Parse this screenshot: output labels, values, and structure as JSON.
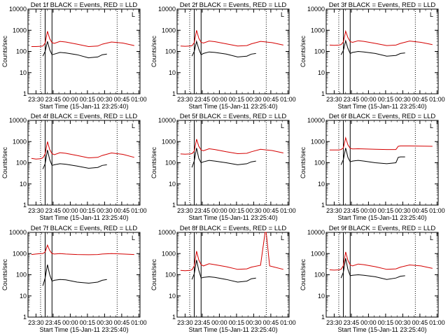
{
  "figure": {
    "title_template": "{det} BLACK = Events, RED = LLD",
    "ylabel": "Counts/sec",
    "xlabel": "Start Time (15-Jan-11 23:25:40)",
    "y_ticks": [
      "1",
      "10",
      "100",
      "1000",
      "10000"
    ],
    "x_ticks": [
      "23:30",
      "23:45",
      "00:00",
      "00:15",
      "00:30",
      "00:45",
      "01:00"
    ],
    "corner_mark": "L"
  },
  "colors": {
    "events": "#000000",
    "lld": "#d40000"
  },
  "chart_data": [
    {
      "type": "line",
      "title": "Det 1f BLACK = Events, RED = LLD",
      "det": "Det 1f",
      "xlabel": "Start Time (15-Jan-11 23:25:40)",
      "ylabel": "Counts/sec",
      "ylim": [
        1,
        10000
      ],
      "yscale": "log",
      "xlim_minutes": [
        -3,
        95
      ],
      "series": [
        {
          "name": "Events",
          "color": "#000000",
          "x": [
            10,
            12,
            14,
            16,
            18,
            20,
            25,
            30,
            40,
            50,
            58,
            62,
            66
          ],
          "y": [
            60,
            100,
            300,
            120,
            70,
            75,
            90,
            85,
            70,
            50,
            55,
            70,
            75
          ]
        },
        {
          "name": "LLD",
          "color": "#d40000",
          "x": [
            0,
            4,
            8,
            10,
            12,
            14,
            16,
            18,
            20,
            25,
            30,
            40,
            50,
            58,
            62,
            70,
            80,
            90
          ],
          "y": [
            170,
            170,
            175,
            180,
            250,
            900,
            400,
            260,
            240,
            300,
            280,
            220,
            170,
            180,
            220,
            280,
            250,
            190
          ]
        }
      ],
      "vlines_solid": [
        12,
        18
      ],
      "vlines_dotted": [
        8,
        75
      ]
    },
    {
      "type": "line",
      "title": "Det 2f BLACK = Events, RED = LLD",
      "det": "Det 2f",
      "xlabel": "Start Time (15-Jan-11 23:25:40)",
      "ylabel": "Counts/sec",
      "ylim": [
        1,
        10000
      ],
      "yscale": "log",
      "xlim_minutes": [
        -3,
        95
      ],
      "series": [
        {
          "name": "Events",
          "color": "#000000",
          "x": [
            10,
            12,
            14,
            16,
            18,
            20,
            25,
            30,
            40,
            50,
            58,
            62,
            66
          ],
          "y": [
            60,
            100,
            300,
            130,
            70,
            80,
            95,
            90,
            75,
            55,
            60,
            75,
            80
          ]
        },
        {
          "name": "LLD",
          "color": "#d40000",
          "x": [
            0,
            4,
            8,
            10,
            12,
            14,
            16,
            18,
            20,
            25,
            30,
            40,
            50,
            58,
            62,
            70,
            80,
            90
          ],
          "y": [
            180,
            175,
            180,
            185,
            260,
            1000,
            420,
            270,
            250,
            310,
            290,
            230,
            180,
            190,
            230,
            300,
            260,
            200
          ]
        }
      ],
      "vlines_solid": [
        12,
        18
      ],
      "vlines_dotted": [
        8,
        75
      ]
    },
    {
      "type": "line",
      "title": "Det 3f BLACK = Events, RED = LLD",
      "det": "Det 3f",
      "xlabel": "Start Time (15-Jan-11 23:25:40)",
      "ylabel": "Counts/sec",
      "ylim": [
        1,
        10000
      ],
      "yscale": "log",
      "xlim_minutes": [
        -3,
        95
      ],
      "series": [
        {
          "name": "Events",
          "color": "#000000",
          "x": [
            10,
            12,
            14,
            16,
            18,
            20,
            25,
            30,
            40,
            50,
            58,
            62,
            66
          ],
          "y": [
            70,
            110,
            320,
            140,
            80,
            90,
            100,
            95,
            80,
            60,
            65,
            80,
            85
          ]
        },
        {
          "name": "LLD",
          "color": "#d40000",
          "x": [
            0,
            4,
            8,
            10,
            12,
            14,
            16,
            18,
            20,
            25,
            30,
            40,
            50,
            58,
            62,
            70,
            80,
            90
          ],
          "y": [
            200,
            195,
            200,
            210,
            280,
            900,
            450,
            290,
            270,
            320,
            300,
            240,
            190,
            200,
            240,
            310,
            270,
            210
          ]
        }
      ],
      "vlines_solid": [
        12,
        18
      ],
      "vlines_dotted": [
        8,
        75
      ]
    },
    {
      "type": "line",
      "title": "Det 4f BLACK = Events, RED = LLD",
      "det": "Det 4f",
      "xlabel": "Start Time (15-Jan-11 23:25:40)",
      "ylabel": "Counts/sec",
      "ylim": [
        1,
        10000
      ],
      "yscale": "log",
      "xlim_minutes": [
        -3,
        95
      ],
      "series": [
        {
          "name": "Events",
          "color": "#000000",
          "x": [
            10,
            12,
            14,
            16,
            18,
            20,
            25,
            30,
            40,
            50,
            58,
            62,
            66
          ],
          "y": [
            50,
            90,
            400,
            140,
            75,
            80,
            90,
            85,
            70,
            55,
            60,
            75,
            80
          ]
        },
        {
          "name": "LLD",
          "color": "#d40000",
          "x": [
            0,
            4,
            8,
            10,
            12,
            14,
            16,
            18,
            20,
            25,
            30,
            40,
            50,
            58,
            62,
            70,
            80,
            90
          ],
          "y": [
            160,
            150,
            155,
            170,
            260,
            1000,
            420,
            270,
            240,
            300,
            280,
            220,
            170,
            180,
            220,
            290,
            250,
            180
          ]
        }
      ],
      "vlines_solid": [
        12,
        18
      ],
      "vlines_dotted": [
        8,
        75
      ]
    },
    {
      "type": "line",
      "title": "Det 5f BLACK = Events, RED = LLD",
      "det": "Det 5f",
      "xlabel": "Start Time (15-Jan-11 23:25:40)",
      "ylabel": "Counts/sec",
      "ylim": [
        1,
        10000
      ],
      "yscale": "log",
      "xlim_minutes": [
        -3,
        95
      ],
      "series": [
        {
          "name": "Events",
          "color": "#000000",
          "x": [
            10,
            12,
            14,
            16,
            18,
            20,
            25,
            30,
            40,
            50,
            58,
            62,
            66
          ],
          "y": [
            60,
            120,
            500,
            160,
            100,
            110,
            130,
            120,
            100,
            80,
            90,
            110,
            120
          ]
        },
        {
          "name": "LLD",
          "color": "#d40000",
          "x": [
            0,
            4,
            8,
            10,
            12,
            14,
            16,
            18,
            20,
            25,
            30,
            40,
            50,
            58,
            62,
            70,
            80,
            90
          ],
          "y": [
            260,
            255,
            260,
            270,
            350,
            1300,
            600,
            400,
            370,
            460,
            420,
            330,
            270,
            280,
            330,
            430,
            380,
            290
          ]
        }
      ],
      "vlines_solid": [
        12,
        18
      ],
      "vlines_dotted": [
        8,
        75
      ]
    },
    {
      "type": "line",
      "title": "Det 6f BLACK = Events, RED = LLD",
      "det": "Det 6f",
      "xlabel": "Start Time (15-Jan-11 23:25:40)",
      "ylabel": "Counts/sec",
      "ylim": [
        1,
        10000
      ],
      "yscale": "log",
      "xlim_minutes": [
        -3,
        95
      ],
      "series": [
        {
          "name": "Events",
          "color": "#000000",
          "x": [
            10,
            12,
            14,
            16,
            18,
            20,
            25,
            30,
            40,
            50,
            58,
            60,
            62,
            66
          ],
          "y": [
            80,
            140,
            500,
            180,
            110,
            120,
            130,
            120,
            100,
            90,
            100,
            180,
            190,
            190
          ]
        },
        {
          "name": "LLD",
          "color": "#d40000",
          "x": [
            0,
            4,
            8,
            10,
            12,
            14,
            16,
            18,
            20,
            25,
            30,
            40,
            50,
            58,
            60,
            62,
            70,
            80,
            90
          ],
          "y": [
            400,
            400,
            400,
            420,
            500,
            1500,
            700,
            480,
            450,
            460,
            450,
            430,
            420,
            420,
            600,
            620,
            620,
            610,
            600
          ]
        }
      ],
      "vlines_solid": [
        12,
        18
      ],
      "vlines_dotted": [
        8,
        75
      ]
    },
    {
      "type": "line",
      "title": "Det 7f BLACK = Events, RED = LLD",
      "det": "Det 7f",
      "xlabel": "Start Time (15-Jan-11 23:25:40)",
      "ylabel": "Counts/sec",
      "ylim": [
        1,
        10000
      ],
      "yscale": "log",
      "xlim_minutes": [
        -3,
        95
      ],
      "series": [
        {
          "name": "Events",
          "color": "#000000",
          "x": [
            10,
            12,
            14,
            16,
            18,
            20,
            25,
            30,
            40,
            50,
            58,
            62,
            66
          ],
          "y": [
            30,
            70,
            300,
            100,
            50,
            55,
            60,
            58,
            45,
            40,
            45,
            55,
            60
          ]
        },
        {
          "name": "LLD",
          "color": "#d40000",
          "x": [
            0,
            4,
            8,
            10,
            12,
            14,
            16,
            18,
            20,
            25,
            30,
            40,
            50,
            58,
            62,
            70,
            80,
            90
          ],
          "y": [
            900,
            950,
            1000,
            1000,
            1200,
            2500,
            1400,
            1000,
            950,
            1000,
            950,
            900,
            880,
            900,
            950,
            1000,
            950,
            900
          ]
        }
      ],
      "vlines_solid": [
        12,
        18
      ],
      "vlines_dotted": [
        8,
        75
      ]
    },
    {
      "type": "line",
      "title": "Det 8f BLACK = Events, RED = LLD",
      "det": "Det 8f",
      "xlabel": "Start Time (15-Jan-11 23:25:40)",
      "ylabel": "Counts/sec",
      "ylim": [
        1,
        10000
      ],
      "yscale": "log",
      "xlim_minutes": [
        -3,
        95
      ],
      "series": [
        {
          "name": "Events",
          "color": "#000000",
          "x": [
            10,
            12,
            14,
            16,
            18,
            20,
            25,
            30,
            40,
            50,
            58,
            62,
            66
          ],
          "y": [
            60,
            110,
            500,
            160,
            70,
            75,
            80,
            75,
            60,
            45,
            50,
            65,
            70
          ]
        },
        {
          "name": "LLD",
          "color": "#d40000",
          "x": [
            0,
            4,
            8,
            10,
            12,
            14,
            16,
            18,
            20,
            25,
            30,
            40,
            50,
            58,
            62,
            70,
            74,
            75,
            78,
            90
          ],
          "y": [
            160,
            155,
            160,
            170,
            260,
            1300,
            500,
            300,
            260,
            330,
            300,
            240,
            180,
            190,
            230,
            280,
            10000,
            10000,
            260,
            180
          ]
        }
      ],
      "vlines_solid": [
        12,
        18
      ],
      "vlines_dotted": [
        8,
        75
      ]
    },
    {
      "type": "line",
      "title": "Det 9f BLACK = Events, RED = LLD",
      "det": "Det 9f",
      "xlabel": "Start Time (15-Jan-11 23:25:40)",
      "ylabel": "Counts/sec",
      "ylim": [
        1,
        10000
      ],
      "yscale": "log",
      "xlim_minutes": [
        -3,
        95
      ],
      "series": [
        {
          "name": "Events",
          "color": "#000000",
          "x": [
            10,
            12,
            14,
            16,
            18,
            20,
            25,
            30,
            40,
            50,
            58,
            62,
            66
          ],
          "y": [
            70,
            130,
            600,
            180,
            90,
            95,
            100,
            95,
            80,
            60,
            70,
            85,
            90
          ]
        },
        {
          "name": "LLD",
          "color": "#d40000",
          "x": [
            0,
            4,
            8,
            10,
            12,
            14,
            16,
            18,
            20,
            25,
            30,
            40,
            50,
            58,
            62,
            70,
            80,
            90
          ],
          "y": [
            170,
            165,
            170,
            180,
            270,
            1200,
            480,
            290,
            260,
            320,
            300,
            240,
            180,
            190,
            230,
            290,
            260,
            200
          ]
        }
      ],
      "vlines_solid": [
        12,
        18
      ],
      "vlines_dotted": [
        8,
        75
      ]
    }
  ]
}
